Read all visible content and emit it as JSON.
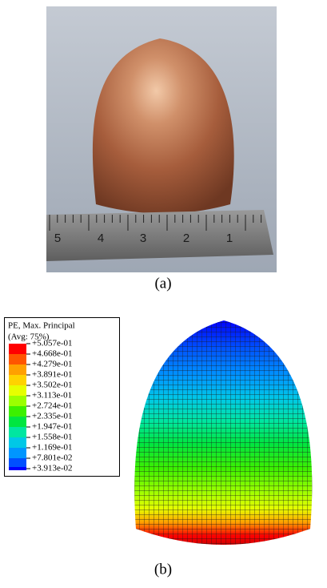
{
  "panel_a": {
    "ruler_labels": [
      "5",
      "4",
      "3",
      "2",
      "1"
    ],
    "caption": "(a)"
  },
  "panel_b": {
    "legend": {
      "title": "PE, Max. Principal",
      "subtitle": "(Avg: 75%)",
      "labels": [
        "+5.057e-01",
        "+4.668e-01",
        "+4.279e-01",
        "+3.891e-01",
        "+3.502e-01",
        "+3.113e-01",
        "+2.724e-01",
        "+2.335e-01",
        "+1.947e-01",
        "+1.558e-01",
        "+1.169e-01",
        "+7.801e-02",
        "+3.913e-02"
      ],
      "colors": [
        "#ff0000",
        "#ff5500",
        "#ffa000",
        "#ffd200",
        "#e6ff00",
        "#9bff00",
        "#3cf000",
        "#00e640",
        "#00e6a0",
        "#00c8e6",
        "#0096ff",
        "#0050ff",
        "#0000ff"
      ]
    },
    "caption": "(b)"
  }
}
